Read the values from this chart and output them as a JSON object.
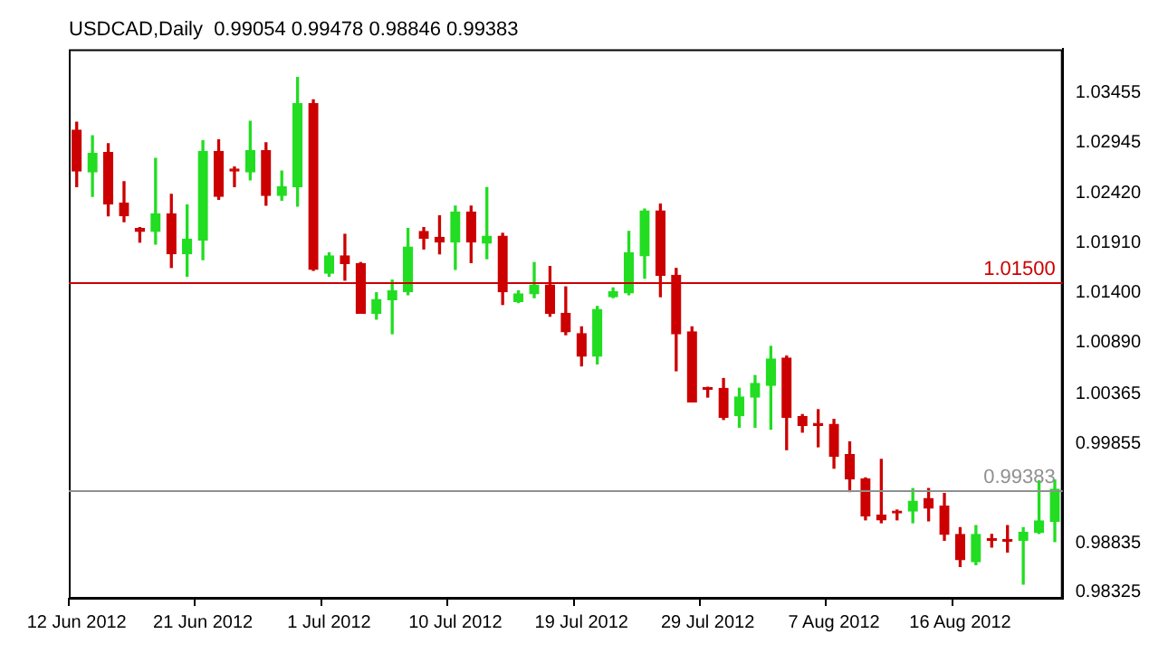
{
  "chart_data": {
    "type": "candlestick",
    "title": "USDCAD,Daily  0.99054 0.99478 0.98846 0.99383",
    "categories": [
      "12 Jun 2012",
      null,
      null,
      null,
      null,
      null,
      null,
      null,
      "21 Jun 2012",
      null,
      null,
      null,
      null,
      null,
      null,
      null,
      "1 Jul 2012",
      null,
      null,
      null,
      null,
      null,
      null,
      null,
      "10 Jul 2012",
      null,
      null,
      null,
      null,
      null,
      null,
      null,
      "19 Jul 2012",
      null,
      null,
      null,
      null,
      null,
      null,
      null,
      "29 Jul 2012",
      null,
      null,
      null,
      null,
      null,
      null,
      null,
      "7 Aug 2012",
      null,
      null,
      null,
      null,
      null,
      null,
      null,
      "16 Aug 2012",
      null,
      null,
      null,
      null,
      null,
      null
    ],
    "ohlc": [
      [
        1.0307,
        1.0315,
        1.0249,
        1.0265
      ],
      [
        1.0264,
        1.0301,
        1.0239,
        1.0283
      ],
      [
        1.0284,
        1.0293,
        1.0219,
        1.0231
      ],
      [
        1.0232,
        1.0254,
        1.0213,
        1.0219
      ],
      [
        1.0206,
        1.0207,
        1.0192,
        1.0203
      ],
      [
        1.0203,
        1.0278,
        1.019,
        1.0221
      ],
      [
        1.0221,
        1.0241,
        1.0166,
        1.018
      ],
      [
        1.018,
        1.023,
        1.0157,
        1.0195
      ],
      [
        1.0194,
        1.0296,
        1.0174,
        1.0285
      ],
      [
        1.0285,
        1.0297,
        1.0236,
        1.0239
      ],
      [
        1.0267,
        1.0269,
        1.0249,
        1.0265
      ],
      [
        1.0264,
        1.0316,
        1.0256,
        1.0286
      ],
      [
        1.0286,
        1.0294,
        1.023,
        1.024
      ],
      [
        1.024,
        1.0265,
        1.0235,
        1.0249
      ],
      [
        1.0249,
        1.0361,
        1.0229,
        1.0334
      ],
      [
        1.0334,
        1.0338,
        1.0163,
        1.0164
      ],
      [
        1.016,
        1.0181,
        1.0157,
        1.0178
      ],
      [
        1.0178,
        1.02,
        1.0153,
        1.017
      ],
      [
        1.017,
        1.0171,
        1.0119,
        1.0119
      ],
      [
        1.0119,
        1.014,
        1.0113,
        1.0133
      ],
      [
        1.0133,
        1.0153,
        1.0098,
        1.0142
      ],
      [
        1.0141,
        1.0206,
        1.0138,
        1.0187
      ],
      [
        1.0203,
        1.0207,
        1.0185,
        1.0196
      ],
      [
        1.0197,
        1.0219,
        1.018,
        1.0192
      ],
      [
        1.0192,
        1.0229,
        1.0164,
        1.0223
      ],
      [
        1.0223,
        1.0229,
        1.0171,
        1.0192
      ],
      [
        1.0191,
        1.0248,
        1.0175,
        1.0198
      ],
      [
        1.0198,
        1.0201,
        1.0128,
        1.0141
      ],
      [
        1.0131,
        1.0142,
        1.013,
        1.0139
      ],
      [
        1.0139,
        1.0171,
        1.0135,
        1.0148
      ],
      [
        1.0148,
        1.0167,
        1.0116,
        1.0119
      ],
      [
        1.0119,
        1.0146,
        1.0097,
        1.01
      ],
      [
        1.0098,
        1.0105,
        1.0065,
        1.0075
      ],
      [
        1.0075,
        1.0126,
        1.0067,
        1.0123
      ],
      [
        1.0136,
        1.0145,
        1.0135,
        1.0141
      ],
      [
        1.014,
        1.0203,
        1.0138,
        1.0181
      ],
      [
        1.0178,
        1.0226,
        1.0155,
        1.0224
      ],
      [
        1.0224,
        1.0231,
        1.0136,
        1.0158
      ],
      [
        1.0158,
        1.0165,
        1.006,
        1.0098
      ],
      [
        1.01,
        1.0105,
        1.0028,
        1.0028
      ],
      [
        1.0042,
        1.0043,
        1.0033,
        1.0041
      ],
      [
        1.0042,
        1.0052,
        1.001,
        1.0012
      ],
      [
        1.0014,
        1.0042,
        1.0002,
        1.0033
      ],
      [
        1.0033,
        1.0055,
        1.0002,
        1.0047
      ],
      [
        1.0045,
        1.0085,
        1.0,
        1.0072
      ],
      [
        1.0073,
        1.0075,
        0.9979,
        1.0012
      ],
      [
        1.0013,
        1.0015,
        0.9997,
        1.0004
      ],
      [
        1.0005,
        1.002,
        0.9982,
        1.0004
      ],
      [
        1.0005,
        1.001,
        0.996,
        0.9972
      ],
      [
        0.9974,
        0.9987,
        0.9936,
        0.9949
      ],
      [
        0.9949,
        0.995,
        0.9907,
        0.9911
      ],
      [
        0.9912,
        0.9969,
        0.9904,
        0.9907
      ],
      [
        0.9916,
        0.9917,
        0.9907,
        0.9914
      ],
      [
        0.9916,
        0.9939,
        0.9904,
        0.9926
      ],
      [
        0.9929,
        0.9939,
        0.9906,
        0.9919
      ],
      [
        0.9921,
        0.9934,
        0.9886,
        0.9892
      ],
      [
        0.9892,
        0.9899,
        0.9859,
        0.9866
      ],
      [
        0.9864,
        0.9901,
        0.9861,
        0.9892
      ],
      [
        0.9887,
        0.9892,
        0.9879,
        0.9886
      ],
      [
        0.9886,
        0.9901,
        0.9874,
        0.9885
      ],
      [
        0.9886,
        0.9899,
        0.9841,
        0.9894
      ],
      [
        0.9894,
        0.9947,
        0.9893,
        0.9906
      ],
      [
        0.99054,
        0.99478,
        0.98846,
        0.99383
      ]
    ],
    "colors": [
      "#cc0000",
      "#22dd22",
      "#cc0000",
      "#cc0000",
      "#cc0000",
      "#22dd22",
      "#cc0000",
      "#22dd22",
      "#22dd22",
      "#cc0000",
      "#cc0000",
      "#22dd22",
      "#cc0000",
      "#22dd22",
      "#22dd22",
      "#cc0000",
      "#22dd22",
      "#cc0000",
      "#cc0000",
      "#22dd22",
      "#22dd22",
      "#22dd22",
      "#cc0000",
      "#cc0000",
      "#22dd22",
      "#cc0000",
      "#22dd22",
      "#cc0000",
      "#22dd22",
      "#22dd22",
      "#cc0000",
      "#cc0000",
      "#cc0000",
      "#22dd22",
      "#22dd22",
      "#22dd22",
      "#22dd22",
      "#cc0000",
      "#cc0000",
      "#cc0000",
      "#cc0000",
      "#cc0000",
      "#22dd22",
      "#22dd22",
      "#22dd22",
      "#cc0000",
      "#cc0000",
      "#cc0000",
      "#cc0000",
      "#cc0000",
      "#cc0000",
      "#cc0000",
      "#cc0000",
      "#22dd22",
      "#cc0000",
      "#cc0000",
      "#cc0000",
      "#22dd22",
      "#cc0000",
      "#cc0000",
      "#22dd22",
      "#22dd22",
      "#22dd22"
    ],
    "ylim": [
      0.9826,
      1.039
    ],
    "yticks": [
      0.98325,
      {
        "value": 0.98835,
        "label": "0.98835"
      },
      0.99855,
      1.00365,
      {
        "value": 1.0089,
        "label": "1.00890"
      },
      {
        "value": 1.014,
        "label": "1.01400"
      },
      {
        "value": 1.0191,
        "label": "1.01910"
      },
      {
        "value": 1.0242,
        "label": "1.02420"
      },
      1.02945,
      1.03455
    ],
    "ref_lines": [
      {
        "axis": "y",
        "value": 1.015,
        "label": "1.01500",
        "color": "#cc0000"
      },
      {
        "axis": "y",
        "value": 0.99383,
        "label": "0.99383",
        "color": "#909090"
      }
    ]
  }
}
